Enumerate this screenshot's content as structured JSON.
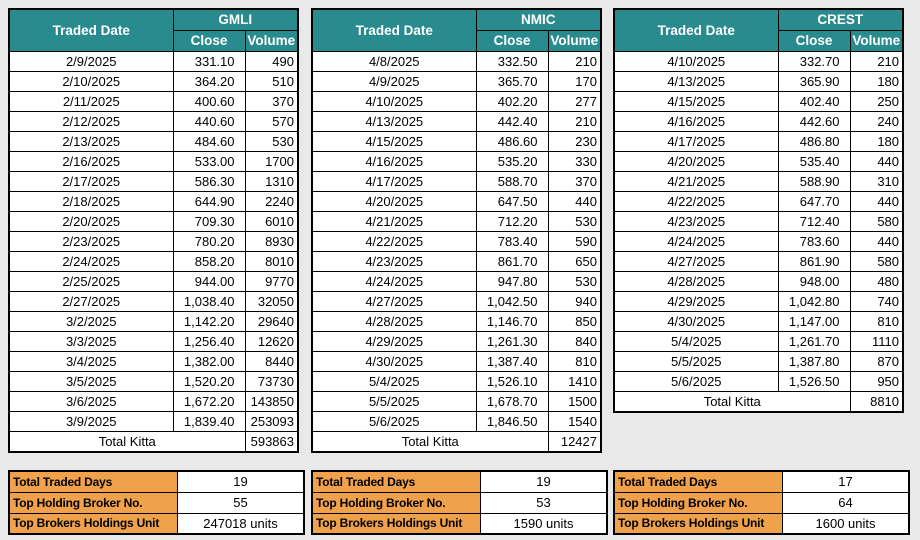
{
  "page": {
    "background_color": "#E9E9E9",
    "header_color": "#2A8B8E",
    "header_text_color": "#FFFFFF",
    "summary_label_color": "#F0A14C",
    "border_color": "#000000"
  },
  "tables": [
    {
      "symbol": "GMLI",
      "date_header": "Traded Date",
      "close_header": "Close",
      "volume_header": "Volume",
      "rows": [
        [
          "2/9/2025",
          "331.10",
          "490"
        ],
        [
          "2/10/2025",
          "364.20",
          "510"
        ],
        [
          "2/11/2025",
          "400.60",
          "370"
        ],
        [
          "2/12/2025",
          "440.60",
          "570"
        ],
        [
          "2/13/2025",
          "484.60",
          "530"
        ],
        [
          "2/16/2025",
          "533.00",
          "1700"
        ],
        [
          "2/17/2025",
          "586.30",
          "1310"
        ],
        [
          "2/18/2025",
          "644.90",
          "2240"
        ],
        [
          "2/20/2025",
          "709.30",
          "6010"
        ],
        [
          "2/23/2025",
          "780.20",
          "8930"
        ],
        [
          "2/24/2025",
          "858.20",
          "8010"
        ],
        [
          "2/25/2025",
          "944.00",
          "9770"
        ],
        [
          "2/27/2025",
          "1,038.40",
          "32050"
        ],
        [
          "3/2/2025",
          "1,142.20",
          "29640"
        ],
        [
          "3/3/2025",
          "1,256.40",
          "12620"
        ],
        [
          "3/4/2025",
          "1,382.00",
          "8440"
        ],
        [
          "3/5/2025",
          "1,520.20",
          "73730"
        ],
        [
          "3/6/2025",
          "1,672.20",
          "143850"
        ],
        [
          "3/9/2025",
          "1,839.40",
          "253093"
        ]
      ],
      "total_kitta_label": "Total Kitta",
      "total_kitta_value": "593863",
      "summary": [
        {
          "label": "Total Traded Days",
          "value": "19"
        },
        {
          "label": "Top Holding Broker No.",
          "value": "55"
        },
        {
          "label": "Top Brokers Holdings Unit",
          "value": "247018 units"
        }
      ]
    },
    {
      "symbol": "NMIC",
      "date_header": "Traded Date",
      "close_header": "Close",
      "volume_header": "Volume",
      "rows": [
        [
          "4/8/2025",
          "332.50",
          "210"
        ],
        [
          "4/9/2025",
          "365.70",
          "170"
        ],
        [
          "4/10/2025",
          "402.20",
          "277"
        ],
        [
          "4/13/2025",
          "442.40",
          "210"
        ],
        [
          "4/15/2025",
          "486.60",
          "230"
        ],
        [
          "4/16/2025",
          "535.20",
          "330"
        ],
        [
          "4/17/2025",
          "588.70",
          "370"
        ],
        [
          "4/20/2025",
          "647.50",
          "440"
        ],
        [
          "4/21/2025",
          "712.20",
          "530"
        ],
        [
          "4/22/2025",
          "783.40",
          "590"
        ],
        [
          "4/23/2025",
          "861.70",
          "650"
        ],
        [
          "4/24/2025",
          "947.80",
          "530"
        ],
        [
          "4/27/2025",
          "1,042.50",
          "940"
        ],
        [
          "4/28/2025",
          "1,146.70",
          "850"
        ],
        [
          "4/29/2025",
          "1,261.30",
          "840"
        ],
        [
          "4/30/2025",
          "1,387.40",
          "810"
        ],
        [
          "5/4/2025",
          "1,526.10",
          "1410"
        ],
        [
          "5/5/2025",
          "1,678.70",
          "1500"
        ],
        [
          "5/6/2025",
          "1,846.50",
          "1540"
        ]
      ],
      "total_kitta_label": "Total Kitta",
      "total_kitta_value": "12427",
      "summary": [
        {
          "label": "Total Traded Days",
          "value": "19"
        },
        {
          "label": "Top Holding Broker No.",
          "value": "53"
        },
        {
          "label": "Top Brokers Holdings Unit",
          "value": "1590 units"
        }
      ]
    },
    {
      "symbol": "CREST",
      "date_header": "Traded Date",
      "close_header": "Close",
      "volume_header": "Volume",
      "rows": [
        [
          "4/10/2025",
          "332.70",
          "210"
        ],
        [
          "4/13/2025",
          "365.90",
          "180"
        ],
        [
          "4/15/2025",
          "402.40",
          "250"
        ],
        [
          "4/16/2025",
          "442.60",
          "240"
        ],
        [
          "4/17/2025",
          "486.80",
          "180"
        ],
        [
          "4/20/2025",
          "535.40",
          "440"
        ],
        [
          "4/21/2025",
          "588.90",
          "310"
        ],
        [
          "4/22/2025",
          "647.70",
          "440"
        ],
        [
          "4/23/2025",
          "712.40",
          "580"
        ],
        [
          "4/24/2025",
          "783.60",
          "440"
        ],
        [
          "4/27/2025",
          "861.90",
          "580"
        ],
        [
          "4/28/2025",
          "948.00",
          "480"
        ],
        [
          "4/29/2025",
          "1,042.80",
          "740"
        ],
        [
          "4/30/2025",
          "1,147.00",
          "810"
        ],
        [
          "5/4/2025",
          "1,261.70",
          "1110"
        ],
        [
          "5/5/2025",
          "1,387.80",
          "870"
        ],
        [
          "5/6/2025",
          "1,526.50",
          "950"
        ]
      ],
      "total_kitta_label": "Total Kitta",
      "total_kitta_value": "8810",
      "summary": [
        {
          "label": "Total Traded Days",
          "value": "17"
        },
        {
          "label": "Top Holding Broker No.",
          "value": "64"
        },
        {
          "label": "Top Brokers Holdings Unit",
          "value": "1600 units"
        }
      ]
    }
  ]
}
